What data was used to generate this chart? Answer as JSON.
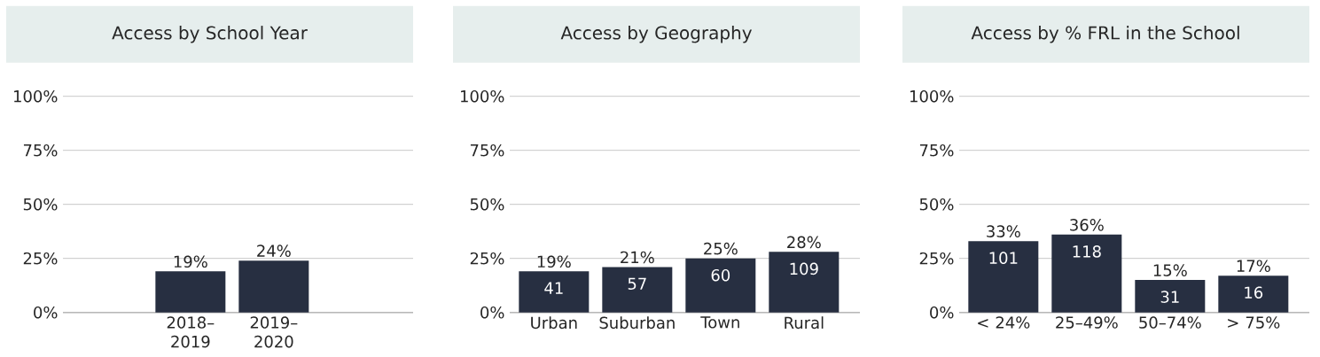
{
  "chart_data": [
    {
      "type": "bar",
      "title": "Access by School Year",
      "categories": [
        "2018–2019",
        "2019–2020"
      ],
      "values": [
        19,
        24
      ],
      "value_labels": [
        "19%",
        "24%"
      ],
      "color": "#272f41",
      "ylim": [
        0,
        100
      ],
      "yticks": [
        {
          "value": 0,
          "label": "0%"
        },
        {
          "value": 25,
          "label": "25%"
        },
        {
          "value": 50,
          "label": "50%"
        },
        {
          "value": 75,
          "label": "75%"
        },
        {
          "value": 100,
          "label": "100%"
        }
      ],
      "grid": "y"
    },
    {
      "type": "bar",
      "title": "Access by Geography",
      "categories": [
        "Urban",
        "Suburban",
        "Town",
        "Rural"
      ],
      "values": [
        19,
        21,
        25,
        28
      ],
      "value_labels": [
        "19%",
        "21%",
        "25%",
        "28%"
      ],
      "annotations": [
        {
          "text": "41",
          "x": "Urban",
          "y": 19
        },
        {
          "text": "57",
          "x": "Suburban",
          "y": 21
        },
        {
          "text": "60",
          "x": "Town",
          "y": 25
        },
        {
          "text": "109",
          "x": "Rural",
          "y": 28
        }
      ],
      "color": "#272f41",
      "ylim": [
        0,
        100
      ],
      "yticks": [
        {
          "value": 0,
          "label": "0%"
        },
        {
          "value": 25,
          "label": "25%"
        },
        {
          "value": 50,
          "label": "50%"
        },
        {
          "value": 75,
          "label": "75%"
        },
        {
          "value": 100,
          "label": "100%"
        }
      ],
      "grid": "y"
    },
    {
      "type": "bar",
      "title": "Access by % FRL in the School",
      "categories": [
        "< 24%",
        "25–49%",
        "50–74%",
        "> 75%"
      ],
      "values": [
        33,
        36,
        15,
        17
      ],
      "value_labels": [
        "33%",
        "36%",
        "15%",
        "17%"
      ],
      "annotations": [
        {
          "text": "101",
          "x": "< 24%",
          "y": 33
        },
        {
          "text": "118",
          "x": "25–49%",
          "y": 36
        },
        {
          "text": "31",
          "x": "50–74%",
          "y": 15
        },
        {
          "text": "16",
          "x": "> 75%",
          "y": 17
        }
      ],
      "color": "#272f41",
      "ylim": [
        0,
        100
      ],
      "yticks": [
        {
          "value": 0,
          "label": "0%"
        },
        {
          "value": 25,
          "label": "25%"
        },
        {
          "value": 50,
          "label": "50%"
        },
        {
          "value": 75,
          "label": "75%"
        },
        {
          "value": 100,
          "label": "100%"
        }
      ],
      "grid": "y"
    }
  ]
}
